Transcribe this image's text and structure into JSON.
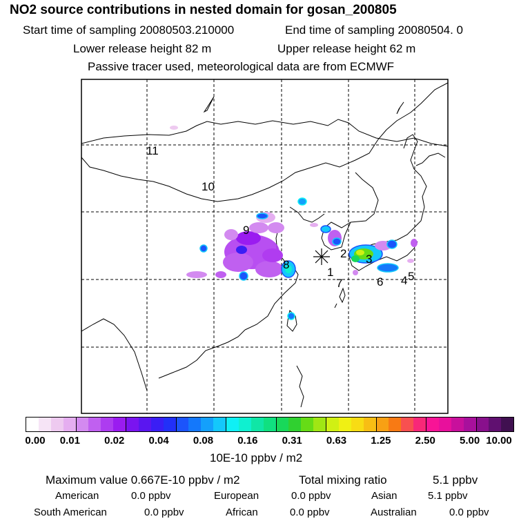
{
  "header": {
    "title": "NO2 source contributions in nested domain for gosan_200805",
    "start_time": "Start time of sampling 20080503.210000",
    "end_time": "End time of sampling 20080504.     0",
    "lower_release": "Lower release height   82 m",
    "upper_release": "Upper release height   62 m",
    "tracer_note": "Passive tracer used, meteorological data are from ECMWF"
  },
  "map": {
    "region_labels": [
      "1",
      "2",
      "3",
      "4",
      "5",
      "6",
      "7",
      "8",
      "9",
      "10",
      "11"
    ],
    "receptor_marker": "star-marker"
  },
  "colorbar": {
    "ticks": [
      "0.00",
      "0.01",
      "0.02",
      "0.04",
      "0.08",
      "0.16",
      "0.31",
      "0.63",
      "1.25",
      "2.50",
      "5.00",
      "10.00"
    ],
    "unit": "10E-10 ppbv / m2",
    "colors": [
      "#ffffff",
      "#f6e4f6",
      "#eecaf0",
      "#e5aef0",
      "#d38af0",
      "#c060f0",
      "#ad3cf0",
      "#9a1cf0",
      "#7a14f0",
      "#5a16f0",
      "#3a1ef5",
      "#2230f8",
      "#1c54fb",
      "#1478fb",
      "#14a0fb",
      "#14c8fb",
      "#0ff0f5",
      "#0ff0d0",
      "#10e6a6",
      "#10e080",
      "#18d85a",
      "#30d030",
      "#66dc16",
      "#a0e614",
      "#d0f014",
      "#f0f014",
      "#f8dc14",
      "#f8be14",
      "#f8a014",
      "#f87a14",
      "#f85050",
      "#f82878",
      "#f81496",
      "#e8109c",
      "#c8109c",
      "#a8109c",
      "#88108c",
      "#601070",
      "#401050"
    ]
  },
  "stats": {
    "maximum_value": "Maximum value  0.667E-10 ppbv / m2",
    "total_mixing_label": "Total mixing ratio",
    "total_mixing_value": "5.1 ppbv",
    "regions": [
      {
        "label": "American",
        "value": "0.0 ppbv"
      },
      {
        "label": "European",
        "value": "0.0 ppbv"
      },
      {
        "label": "Asian",
        "value": "5.1 ppbv"
      },
      {
        "label": "South American",
        "value": "0.0 ppbv"
      },
      {
        "label": "African",
        "value": "0.0 ppbv"
      },
      {
        "label": "Australian",
        "value": "0.0 ppbv"
      }
    ]
  }
}
